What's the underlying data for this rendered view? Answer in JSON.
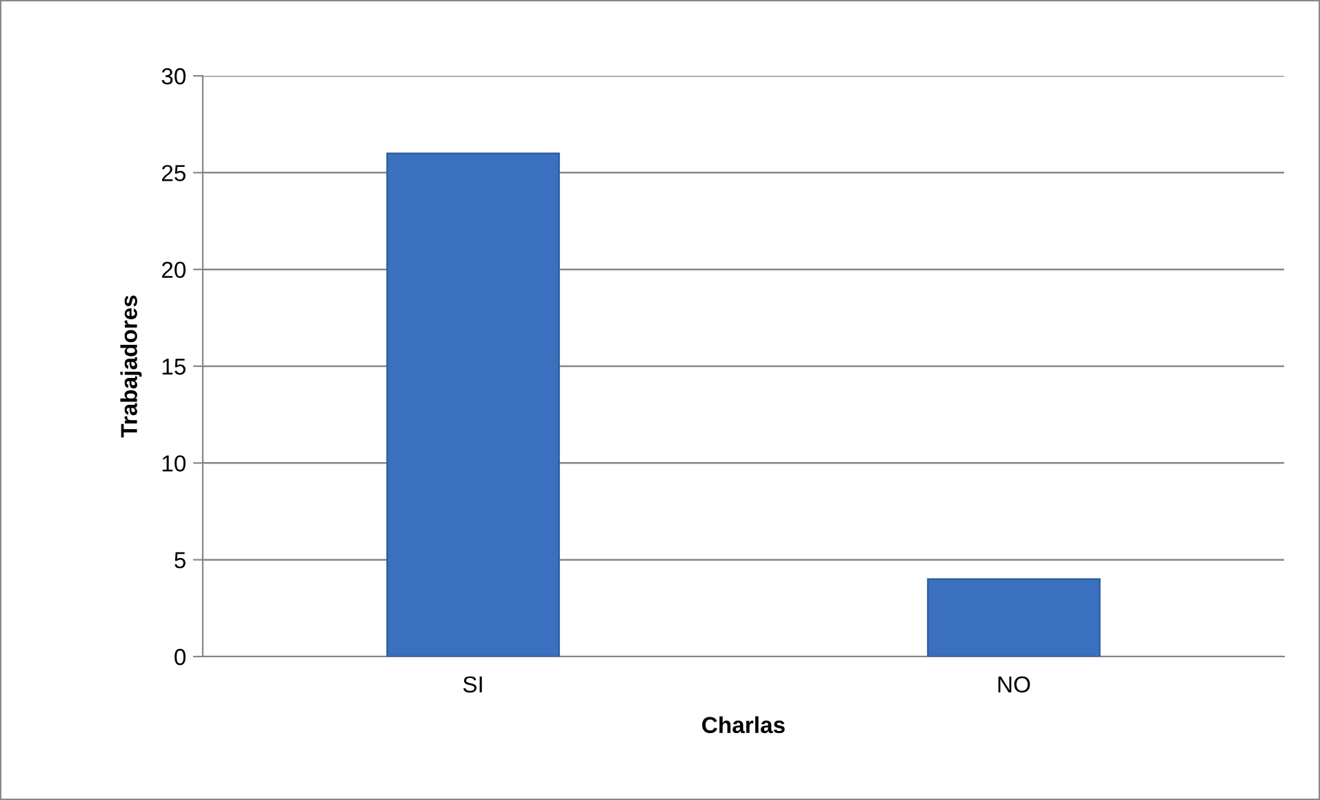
{
  "chart_data": {
    "type": "bar",
    "xlabel": "Charlas",
    "ylabel": "Trabajadores",
    "categories": [
      "SI",
      "NO"
    ],
    "values": [
      26,
      4
    ],
    "color": "#3b70bf",
    "ylim": [
      0,
      30
    ],
    "yticks": [
      0,
      5,
      10,
      15,
      20,
      25,
      30
    ],
    "grid": "y"
  }
}
